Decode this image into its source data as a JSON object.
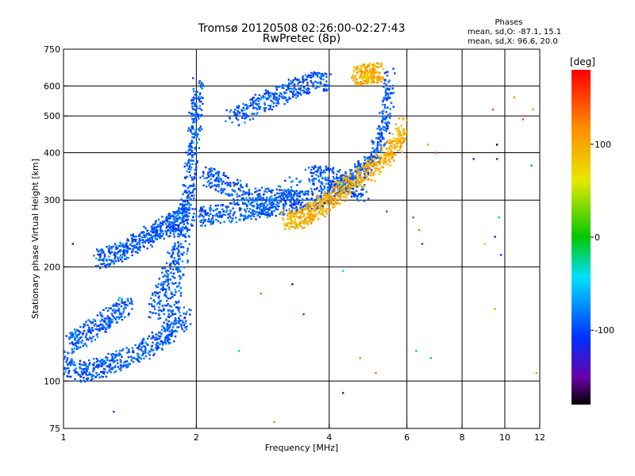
{
  "chart_data": {
    "type": "scatter",
    "title": "Tromsø 20120508 02:26:00-02:27:43",
    "subtitle": "RwPretec (8p)",
    "xlabel": "Frequency [MHz]",
    "ylabel": "Stationary phase Virtual Height [km]",
    "x_scale": "log",
    "y_scale": "log",
    "xlim": [
      1,
      12
    ],
    "ylim": [
      75,
      750
    ],
    "x_ticks": [
      1,
      2,
      4,
      6,
      8,
      10,
      12
    ],
    "y_ticks": [
      75,
      100,
      200,
      300,
      400,
      500,
      600,
      750
    ],
    "x_gridlines": [
      2,
      4,
      6,
      8,
      10
    ],
    "y_gridlines": [
      100,
      200,
      300,
      400,
      500,
      600
    ],
    "grid": true,
    "legend": {
      "title": "Phases",
      "lines": [
        "mean, sd,O: -87.1, 15.1",
        "mean, sd,X:  96.6, 20.0"
      ],
      "placement": "top-right"
    },
    "colorbar": {
      "label": "[deg]",
      "range": [
        -180,
        180
      ],
      "ticks": [
        100,
        0,
        -100
      ],
      "colormap": "rainbow"
    },
    "series": [
      {
        "name": "O",
        "mean_phase": -87.1,
        "sd_phase": 15.1,
        "traces": [
          {
            "x": [
              1.0,
              1.1,
              1.2,
              1.3,
              1.45,
              1.6,
              1.75,
              1.9
            ],
            "y": [
              110,
              105,
              108,
              112,
              118,
              125,
              135,
              150
            ]
          },
          {
            "x": [
              1.02,
              1.1,
              1.2,
              1.3,
              1.4
            ],
            "y": [
              125,
              130,
              140,
              150,
              160
            ]
          },
          {
            "x": [
              1.2,
              1.3,
              1.4,
              1.5,
              1.6,
              1.7,
              1.8,
              1.9
            ],
            "y": [
              210,
              215,
              225,
              235,
              245,
              255,
              265,
              280
            ]
          },
          {
            "x": [
              1.6,
              1.7,
              1.8,
              1.9,
              2.0,
              2.02
            ],
            "y": [
              150,
              180,
              220,
              300,
              450,
              620
            ]
          },
          {
            "x": [
              1.7,
              1.8,
              1.9,
              1.95,
              2.0
            ],
            "y": [
              130,
              170,
              250,
              380,
              560
            ]
          },
          {
            "x": [
              2.0,
              2.2,
              2.5,
              2.8,
              3.0,
              3.3,
              3.6,
              4.0
            ],
            "y": [
              270,
              275,
              280,
              285,
              290,
              295,
              300,
              310
            ]
          },
          {
            "x": [
              2.1,
              2.3,
              2.6,
              3.0,
              3.4
            ],
            "y": [
              350,
              330,
              310,
              300,
              330
            ]
          },
          {
            "x": [
              2.4,
              2.7,
              3.0,
              3.3,
              3.6,
              4.0
            ],
            "y": [
              490,
              530,
              560,
              590,
              610,
              620
            ]
          },
          {
            "x": [
              4.0,
              4.3,
              4.6,
              4.9,
              5.2,
              5.4,
              5.5
            ],
            "y": [
              320,
              330,
              345,
              370,
              420,
              500,
              640
            ]
          },
          {
            "x": [
              3.6,
              4.0,
              4.4,
              4.8
            ],
            "y": [
              350,
              345,
              330,
              315
            ]
          }
        ]
      },
      {
        "name": "X",
        "mean_phase": 96.6,
        "sd_phase": 20.0,
        "traces": [
          {
            "x": [
              3.2,
              3.4,
              3.6,
              3.8,
              4.0,
              4.3,
              4.6,
              5.0,
              5.4,
              5.7,
              5.9
            ],
            "y": [
              265,
              268,
              275,
              285,
              300,
              320,
              340,
              360,
              390,
              420,
              470
            ]
          },
          {
            "x": [
              4.6,
              4.8,
              5.0,
              5.2
            ],
            "y": [
              640,
              645,
              650,
              650
            ]
          }
        ]
      }
    ],
    "scattered_points": [
      {
        "x": 1.05,
        "y": 230,
        "phase": -150
      },
      {
        "x": 1.3,
        "y": 83,
        "phase": -95
      },
      {
        "x": 2.5,
        "y": 120,
        "phase": -30
      },
      {
        "x": 2.8,
        "y": 170,
        "phase": 140
      },
      {
        "x": 2.9,
        "y": 270,
        "phase": -10
      },
      {
        "x": 3.0,
        "y": 78,
        "phase": 120
      },
      {
        "x": 3.3,
        "y": 180,
        "phase": -160
      },
      {
        "x": 3.5,
        "y": 150,
        "phase": -90
      },
      {
        "x": 3.9,
        "y": 295,
        "phase": -170
      },
      {
        "x": 4.3,
        "y": 93,
        "phase": -130
      },
      {
        "x": 4.3,
        "y": 195,
        "phase": -40
      },
      {
        "x": 4.7,
        "y": 115,
        "phase": 120
      },
      {
        "x": 5.1,
        "y": 105,
        "phase": 130
      },
      {
        "x": 5.4,
        "y": 280,
        "phase": -85
      },
      {
        "x": 6.0,
        "y": 390,
        "phase": 160
      },
      {
        "x": 6.2,
        "y": 270,
        "phase": -80
      },
      {
        "x": 6.3,
        "y": 120,
        "phase": -20
      },
      {
        "x": 6.4,
        "y": 250,
        "phase": 130
      },
      {
        "x": 6.5,
        "y": 230,
        "phase": -90
      },
      {
        "x": 6.7,
        "y": 420,
        "phase": 110
      },
      {
        "x": 6.8,
        "y": 115,
        "phase": -60
      },
      {
        "x": 7.0,
        "y": 400,
        "phase": 150
      },
      {
        "x": 8.5,
        "y": 385,
        "phase": -100
      },
      {
        "x": 9.0,
        "y": 230,
        "phase": 50
      },
      {
        "x": 9.4,
        "y": 520,
        "phase": 150
      },
      {
        "x": 9.5,
        "y": 240,
        "phase": -140
      },
      {
        "x": 9.5,
        "y": 155,
        "phase": 100
      },
      {
        "x": 9.6,
        "y": 420,
        "phase": -170
      },
      {
        "x": 9.6,
        "y": 385,
        "phase": -130
      },
      {
        "x": 9.7,
        "y": 270,
        "phase": -60
      },
      {
        "x": 9.8,
        "y": 215,
        "phase": -100
      },
      {
        "x": 10.5,
        "y": 560,
        "phase": 120
      },
      {
        "x": 11.0,
        "y": 490,
        "phase": 150
      },
      {
        "x": 11.5,
        "y": 370,
        "phase": -70
      },
      {
        "x": 11.6,
        "y": 520,
        "phase": 110
      },
      {
        "x": 11.8,
        "y": 105,
        "phase": 110
      }
    ]
  }
}
